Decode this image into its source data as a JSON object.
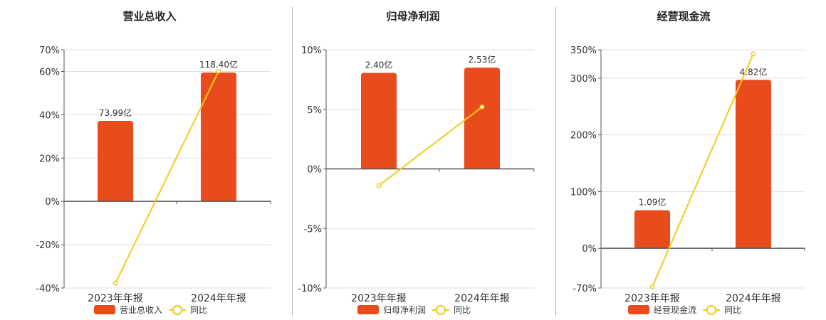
{
  "charts": [
    {
      "title": "营业总收入",
      "categories": [
        "2023年年报",
        "2024年年报"
      ],
      "bar_values": [
        73.99,
        118.4
      ],
      "bar_labels": [
        "73.99亿",
        "118.40亿"
      ],
      "yoy_values": [
        -37.8,
        60.1
      ],
      "yticks": [
        "70%",
        "60%",
        "40%",
        "20%",
        "0%",
        "-20%",
        "-40%"
      ],
      "legend_bar": "营业总收入",
      "legend_line": "同比"
    },
    {
      "title": "归母净利润",
      "categories": [
        "2023年年报",
        "2024年年报"
      ],
      "bar_values": [
        2.4,
        2.53
      ],
      "bar_labels": [
        "2.40亿",
        "2.53亿"
      ],
      "yoy_values": [
        -1.4,
        5.2
      ],
      "yticks": [
        "10%",
        "5%",
        "0%",
        "-5%",
        "-10%"
      ],
      "legend_bar": "归母净利润",
      "legend_line": "同比"
    },
    {
      "title": "经营现金流",
      "categories": [
        "2023年年报",
        "2024年年报"
      ],
      "bar_values": [
        1.09,
        4.82
      ],
      "bar_labels": [
        "1.09亿",
        "4.82亿"
      ],
      "yoy_values": [
        -68.0,
        343.0
      ],
      "yticks": [
        "350%",
        "300%",
        "200%",
        "100%",
        "0%",
        "-70%"
      ],
      "legend_bar": "经营现金流",
      "legend_line": "同比"
    }
  ],
  "colors": {
    "bar": "#e84c1c",
    "line": "#f0cc1a",
    "grid": "#dddde8",
    "axis": "#555555",
    "text": "#333333"
  },
  "chart_data": [
    {
      "type": "bar",
      "title": "营业总收入",
      "categories": [
        "2023年年报",
        "2024年年报"
      ],
      "series": [
        {
          "name": "营业总收入",
          "type": "bar",
          "values": [
            73.99,
            118.4
          ],
          "unit": "亿"
        },
        {
          "name": "同比",
          "type": "line",
          "values": [
            -37.8,
            60.1
          ],
          "unit": "%"
        }
      ],
      "ylim_right": [
        -40,
        70
      ],
      "grid": true,
      "legend": "bottom"
    },
    {
      "type": "bar",
      "title": "归母净利润",
      "categories": [
        "2023年年报",
        "2024年年报"
      ],
      "series": [
        {
          "name": "归母净利润",
          "type": "bar",
          "values": [
            2.4,
            2.53
          ],
          "unit": "亿"
        },
        {
          "name": "同比",
          "type": "line",
          "values": [
            -1.4,
            5.2
          ],
          "unit": "%"
        }
      ],
      "ylim_right": [
        -10,
        10
      ],
      "grid": true,
      "legend": "bottom"
    },
    {
      "type": "bar",
      "title": "经营现金流",
      "categories": [
        "2023年年报",
        "2024年年报"
      ],
      "series": [
        {
          "name": "经营现金流",
          "type": "bar",
          "values": [
            1.09,
            4.82
          ],
          "unit": "亿"
        },
        {
          "name": "同比",
          "type": "line",
          "values": [
            -68.0,
            343.0
          ],
          "unit": "%"
        }
      ],
      "ylim_right": [
        -70,
        350
      ],
      "grid": true,
      "legend": "bottom"
    }
  ]
}
